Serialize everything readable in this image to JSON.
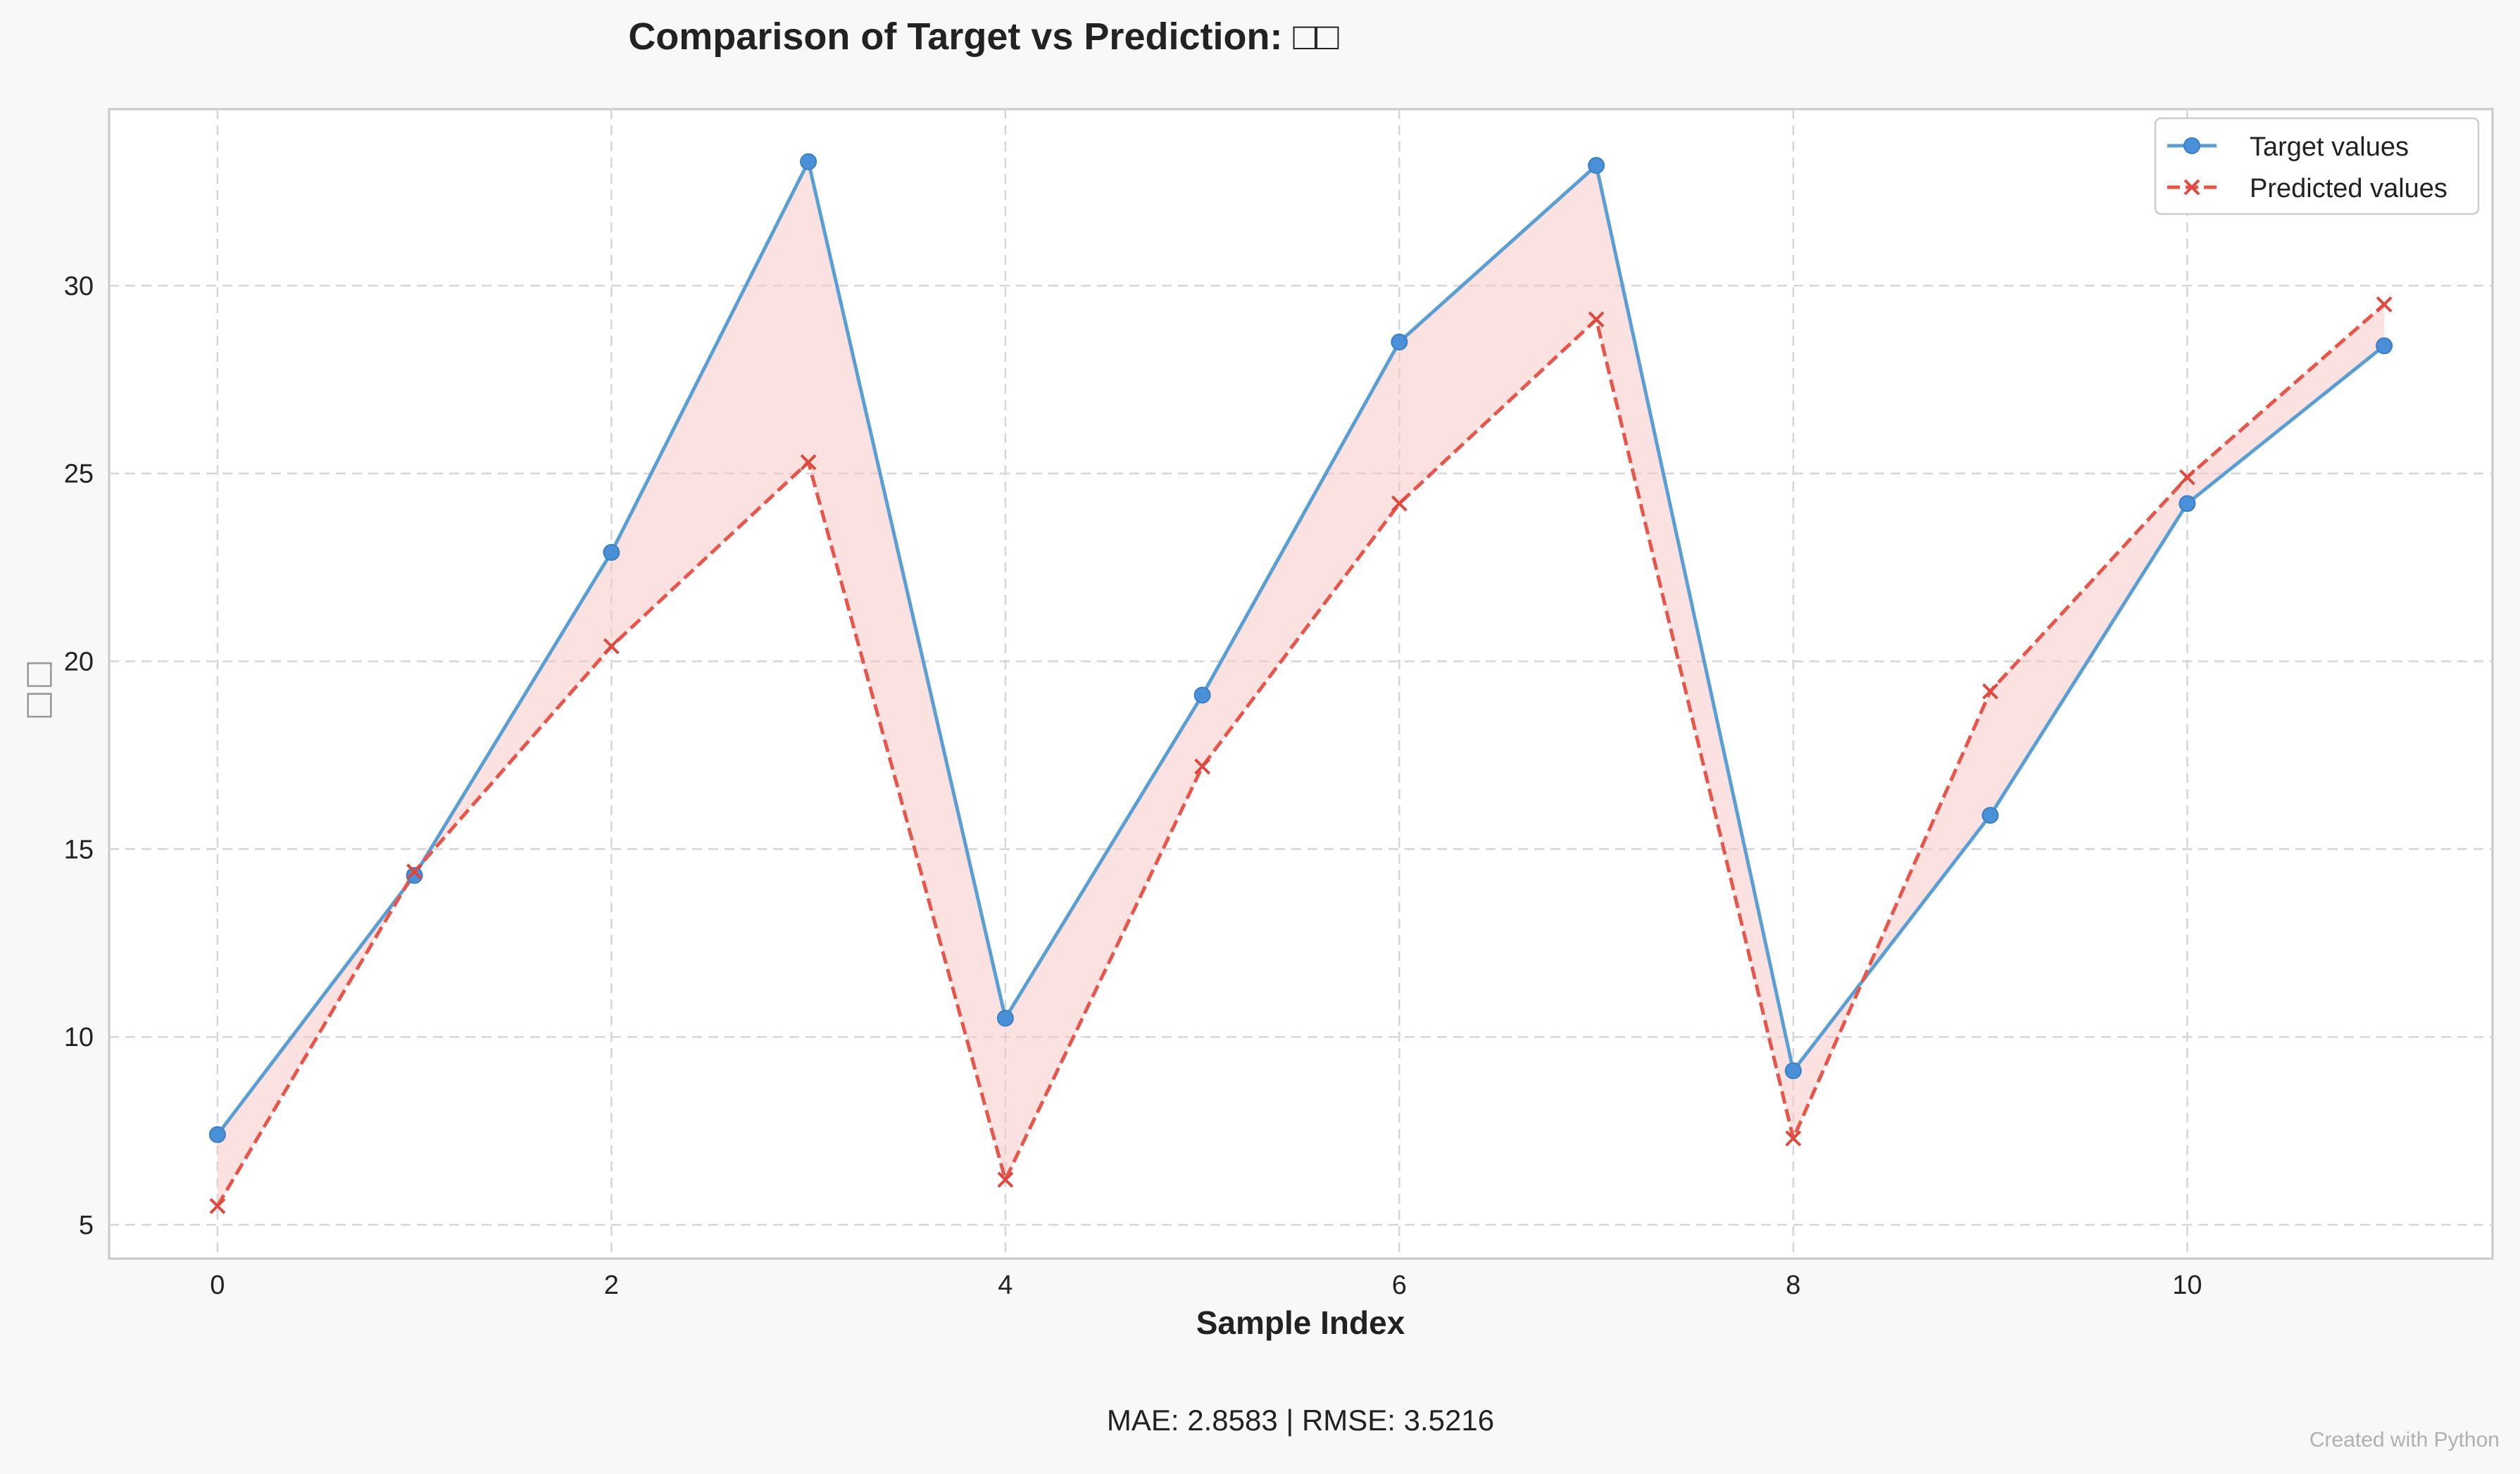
{
  "chart_data": {
    "type": "line",
    "title": "Comparison of Target vs Prediction: □□",
    "xlabel": "Sample Index",
    "ylabel": "□□",
    "xlim": [
      -0.55,
      11.55
    ],
    "ylim": [
      4.1,
      34.7
    ],
    "xticks": [
      0,
      2,
      4,
      6,
      8,
      10
    ],
    "yticks": [
      5,
      10,
      15,
      20,
      25,
      30
    ],
    "grid": true,
    "legend_position": "top-right",
    "x": [
      0,
      1,
      2,
      3,
      4,
      5,
      6,
      7,
      8,
      9,
      10,
      11
    ],
    "series": [
      {
        "name": "Target values",
        "color": "#5a9fd4",
        "marker": "circle",
        "linestyle": "solid",
        "values": [
          7.4,
          14.3,
          22.9,
          33.3,
          10.5,
          19.1,
          28.5,
          33.2,
          9.1,
          15.9,
          24.2,
          28.4
        ]
      },
      {
        "name": "Predicted values",
        "color": "#e8554a",
        "marker": "x",
        "linestyle": "dashed",
        "values": [
          5.5,
          14.4,
          20.4,
          25.3,
          6.2,
          17.2,
          24.2,
          29.1,
          7.3,
          19.2,
          24.9,
          29.5
        ]
      }
    ],
    "fill_between_color": "#f7c5c3",
    "metrics": "MAE: 2.8583 | RMSE: 3.5216"
  },
  "footer": "Created with Python"
}
